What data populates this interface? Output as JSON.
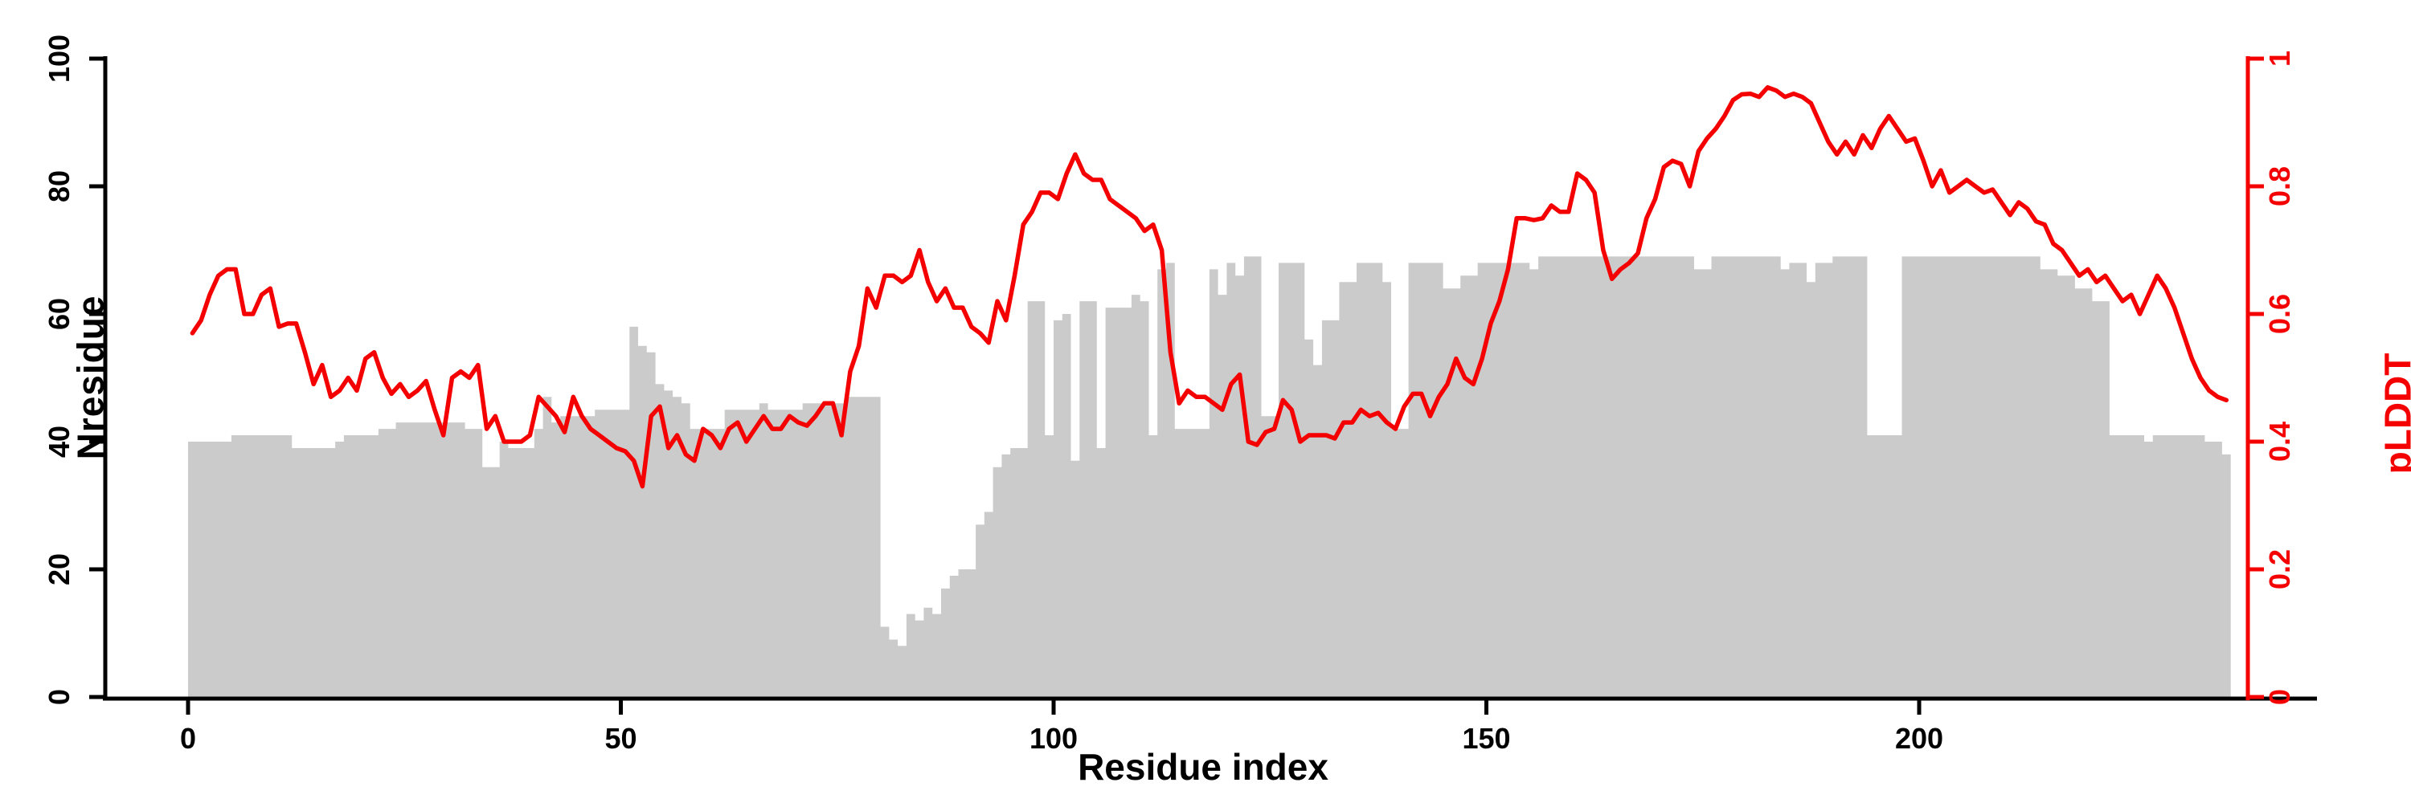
{
  "chart_data": {
    "type": "bar",
    "title": "",
    "xlabel": "Residue index",
    "ylabel_left": "Nresidue",
    "ylabel_right": "pLDDT",
    "x_ticks": [
      0,
      50,
      100,
      150,
      200
    ],
    "y_ticks_left": [
      0,
      20,
      40,
      60,
      80,
      100
    ],
    "y_ticks_right": [
      "0",
      "0.2",
      "0.4",
      "0.6",
      "0.8",
      "1"
    ],
    "ylim_left": [
      0,
      100
    ],
    "ylim_right": [
      0,
      1
    ],
    "xlim": [
      0,
      236
    ],
    "grid": "off",
    "legend": "none",
    "colors": {
      "bar_fill": "#cbcbcb",
      "line": "#f50000",
      "right_axis": "#f50000",
      "left_axis": "#000000"
    },
    "series": [
      {
        "name": "Nresidue",
        "type": "bar",
        "axis": "left",
        "values": [
          40,
          40,
          40,
          40,
          40,
          41,
          41,
          41,
          41,
          41,
          41,
          41,
          39,
          39,
          39,
          39,
          39,
          40,
          41,
          41,
          41,
          41,
          42,
          42,
          43,
          43,
          43,
          43,
          43,
          43,
          43,
          43,
          42,
          42,
          36,
          36,
          40,
          39,
          39,
          39,
          42,
          47,
          43,
          44,
          44,
          44,
          44,
          45,
          45,
          45,
          45,
          58,
          55,
          54,
          49,
          48,
          47,
          46,
          42,
          42,
          42,
          42,
          45,
          45,
          45,
          45,
          46,
          45,
          45,
          45,
          45,
          46,
          46,
          46,
          46,
          46,
          47,
          47,
          47,
          47,
          11,
          9,
          8,
          13,
          12,
          14,
          13,
          17,
          19,
          20,
          20,
          27,
          29,
          36,
          38,
          39,
          39,
          62,
          62,
          41,
          59,
          60,
          37,
          62,
          62,
          39,
          61,
          61,
          61,
          63,
          62,
          41,
          67,
          68,
          42,
          42,
          42,
          42,
          67,
          63,
          68,
          66,
          69,
          69,
          44,
          44,
          68,
          68,
          68,
          56,
          52,
          59,
          59,
          65,
          65,
          68,
          68,
          68,
          65,
          42,
          42,
          68,
          68,
          68,
          68,
          64,
          64,
          66,
          66,
          68,
          68,
          68,
          68,
          68,
          68,
          67,
          69,
          69,
          69,
          69,
          69,
          69,
          69,
          69,
          69,
          69,
          69,
          69,
          69,
          69,
          69,
          69,
          69,
          69,
          67,
          67,
          69,
          69,
          69,
          69,
          69,
          69,
          69,
          69,
          67,
          68,
          68,
          65,
          68,
          68,
          69,
          69,
          69,
          69,
          41,
          41,
          41,
          41,
          69,
          69,
          69,
          69,
          69,
          69,
          69,
          69,
          69,
          69,
          69,
          69,
          69,
          69,
          69,
          69,
          67,
          67,
          66,
          66,
          64,
          64,
          62,
          62,
          41,
          41,
          41,
          41,
          40,
          41,
          41,
          41,
          41,
          41,
          41,
          40,
          40,
          38
        ]
      },
      {
        "name": "pLDDT",
        "type": "line",
        "axis": "right",
        "values": [
          0.57,
          0.59,
          0.63,
          0.66,
          0.67,
          0.67,
          0.6,
          0.6,
          0.63,
          0.64,
          0.58,
          0.585,
          0.585,
          0.54,
          0.49,
          0.52,
          0.47,
          0.48,
          0.5,
          0.48,
          0.53,
          0.54,
          0.5,
          0.475,
          0.49,
          0.47,
          0.48,
          0.495,
          0.45,
          0.41,
          0.5,
          0.51,
          0.5,
          0.52,
          0.42,
          0.44,
          0.4,
          0.4,
          0.4,
          0.41,
          0.47,
          0.455,
          0.44,
          0.415,
          0.47,
          0.44,
          0.42,
          0.41,
          0.4,
          0.39,
          0.385,
          0.37,
          0.33,
          0.44,
          0.455,
          0.39,
          0.41,
          0.38,
          0.37,
          0.42,
          0.41,
          0.39,
          0.42,
          0.43,
          0.4,
          0.42,
          0.44,
          0.42,
          0.42,
          0.44,
          0.43,
          0.425,
          0.44,
          0.46,
          0.46,
          0.41,
          0.51,
          0.55,
          0.64,
          0.61,
          0.66,
          0.66,
          0.65,
          0.66,
          0.7,
          0.65,
          0.62,
          0.64,
          0.61,
          0.61,
          0.58,
          0.57,
          0.555,
          0.62,
          0.59,
          0.66,
          0.74,
          0.76,
          0.79,
          0.79,
          0.78,
          0.82,
          0.85,
          0.82,
          0.81,
          0.81,
          0.78,
          0.77,
          0.76,
          0.75,
          0.73,
          0.74,
          0.7,
          0.54,
          0.46,
          0.48,
          0.47,
          0.47,
          0.46,
          0.45,
          0.49,
          0.505,
          0.4,
          0.395,
          0.415,
          0.42,
          0.465,
          0.45,
          0.4,
          0.41,
          0.41,
          0.41,
          0.405,
          0.43,
          0.43,
          0.45,
          0.44,
          0.445,
          0.43,
          0.42,
          0.455,
          0.475,
          0.475,
          0.44,
          0.47,
          0.49,
          0.53,
          0.5,
          0.49,
          0.53,
          0.585,
          0.62,
          0.67,
          0.75,
          0.75,
          0.747,
          0.75,
          0.77,
          0.76,
          0.76,
          0.82,
          0.81,
          0.79,
          0.7,
          0.655,
          0.67,
          0.68,
          0.695,
          0.75,
          0.78,
          0.83,
          0.84,
          0.835,
          0.8,
          0.855,
          0.875,
          0.89,
          0.91,
          0.935,
          0.944,
          0.945,
          0.94,
          0.955,
          0.95,
          0.94,
          0.945,
          0.94,
          0.93,
          0.9,
          0.87,
          0.85,
          0.87,
          0.85,
          0.88,
          0.86,
          0.89,
          0.91,
          0.89,
          0.87,
          0.875,
          0.84,
          0.8,
          0.825,
          0.79,
          0.8,
          0.81,
          0.8,
          0.79,
          0.795,
          0.775,
          0.755,
          0.775,
          0.765,
          0.745,
          0.74,
          0.71,
          0.7,
          0.68,
          0.66,
          0.67,
          0.65,
          0.66,
          0.64,
          0.62,
          0.63,
          0.6,
          0.63,
          0.66,
          0.64,
          0.61,
          0.57,
          0.53,
          0.5,
          0.48,
          0.47,
          0.465
        ]
      }
    ]
  }
}
